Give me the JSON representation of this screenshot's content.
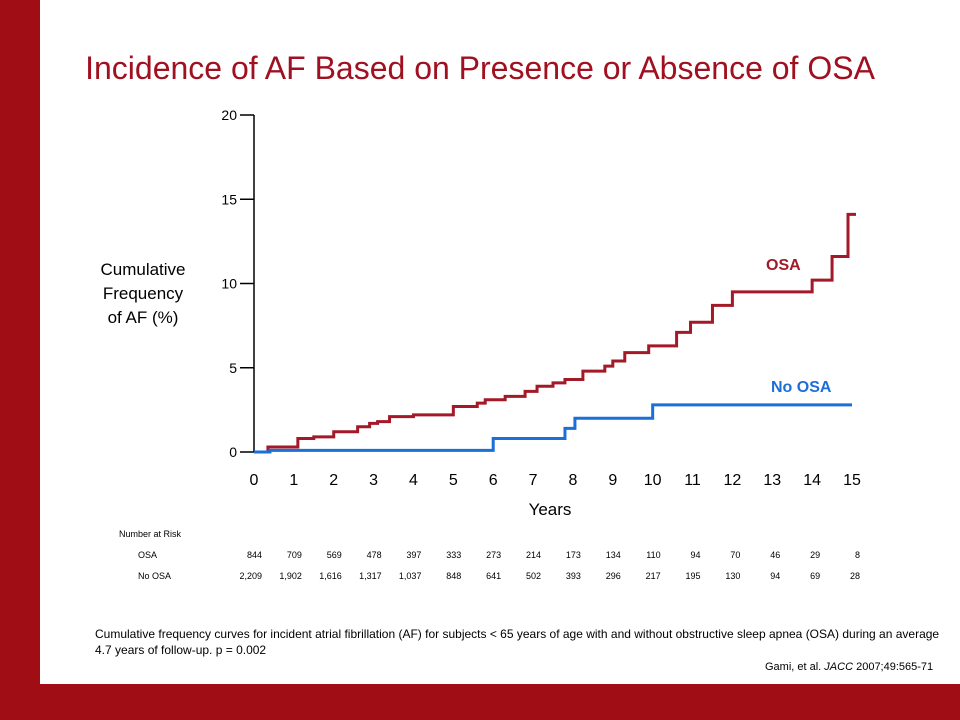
{
  "title": "Incidence of AF Based on Presence or Absence of OSA",
  "colors": {
    "background": "#a00d14",
    "osa": "#a31927",
    "no_osa": "#1a6fd8",
    "title": "#a01020"
  },
  "chart_data": {
    "type": "line",
    "step": true,
    "title": "Incidence of AF Based on Presence or Absence of OSA",
    "ylabel": "Cumulative Frequency of AF (%)",
    "xlabel": "Years",
    "xlim": [
      0,
      15
    ],
    "ylim": [
      0,
      20
    ],
    "xticks": [
      0,
      1,
      2,
      3,
      4,
      5,
      6,
      7,
      8,
      9,
      10,
      11,
      12,
      13,
      14,
      15
    ],
    "yticks": [
      0,
      5,
      10,
      15,
      20
    ],
    "series": [
      {
        "name": "OSA",
        "color": "#a31927",
        "x": [
          0,
          0.35,
          0.85,
          1.1,
          1.5,
          2.0,
          2.6,
          2.9,
          3.1,
          3.4,
          4.0,
          5.0,
          5.6,
          5.8,
          6.3,
          6.8,
          7.1,
          7.5,
          7.8,
          8.25,
          8.8,
          9.0,
          9.3,
          9.9,
          10.6,
          10.95,
          11.5,
          12.0,
          14.0,
          14.5,
          14.9
        ],
        "y": [
          0,
          0.3,
          0.3,
          0.8,
          0.9,
          1.2,
          1.5,
          1.7,
          1.8,
          2.1,
          2.2,
          2.7,
          2.9,
          3.1,
          3.3,
          3.6,
          3.9,
          4.1,
          4.3,
          4.8,
          5.1,
          5.4,
          5.9,
          6.3,
          7.1,
          7.7,
          8.7,
          9.5,
          10.2,
          11.6,
          14.1
        ]
      },
      {
        "name": "No OSA",
        "color": "#1a6fd8",
        "x": [
          0,
          0.4,
          6.0,
          7.8,
          8.05,
          10.0,
          15.0
        ],
        "y": [
          0,
          0.1,
          0.8,
          1.4,
          2.0,
          2.8,
          2.8
        ]
      }
    ],
    "annotations": [
      "OSA",
      "No OSA"
    ]
  },
  "risk_table": {
    "heading": "Number at Risk",
    "rows": [
      {
        "label": "OSA",
        "values": [
          "844",
          "709",
          "569",
          "478",
          "397",
          "333",
          "273",
          "214",
          "173",
          "134",
          "110",
          "94",
          "70",
          "46",
          "29",
          "8"
        ]
      },
      {
        "label": "No OSA",
        "values": [
          "2,209",
          "1,902",
          "1,616",
          "1,317",
          "1,037",
          "848",
          "641",
          "502",
          "393",
          "296",
          "217",
          "195",
          "130",
          "94",
          "69",
          "28"
        ]
      }
    ]
  },
  "caption": "Cumulative frequency curves for incident atrial fibrillation (AF) for subjects < 65 years of age with and without obstructive sleep apnea (OSA) during an average 4.7 years of follow-up. p = 0.002",
  "citation": {
    "prefix": "Gami, et al. ",
    "journal": "JACC",
    "suffix": " 2007;49:565-71"
  }
}
